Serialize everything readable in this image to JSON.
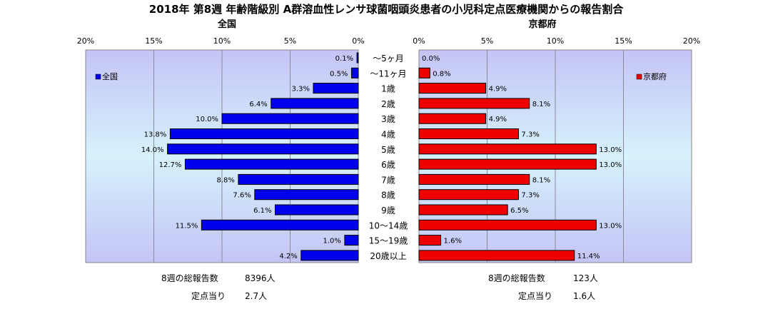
{
  "chart_data": {
    "type": "bar",
    "title": "2018年 第8週 年齢階級別 A群溶血性レンサ球菌咽頭炎患者の小児科定点医療機関からの報告割合",
    "categories": [
      "～5ヶ月",
      "～11ヶ月",
      "1歳",
      "2歳",
      "3歳",
      "4歳",
      "5歳",
      "6歳",
      "7歳",
      "8歳",
      "9歳",
      "10～14歳",
      "15～19歳",
      "20歳以上"
    ],
    "panels": [
      {
        "title": "全国",
        "legend": "全国",
        "color": "#0000ee",
        "xlim": [
          0,
          20
        ],
        "ticks": [
          "20%",
          "15%",
          "10%",
          "5%",
          "0%"
        ],
        "values": [
          0.1,
          0.5,
          3.3,
          6.4,
          10.0,
          13.8,
          14.0,
          12.7,
          8.8,
          7.6,
          6.1,
          11.5,
          1.0,
          4.2
        ],
        "value_labels": [
          "0.1%",
          "0.5%",
          "3.3%",
          "6.4%",
          "10.0%",
          "13.8%",
          "14.0%",
          "12.7%",
          "8.8%",
          "7.6%",
          "6.1%",
          "11.5%",
          "1.0%",
          "4.2%"
        ],
        "summary": [
          {
            "label": "8週の総報告数",
            "value": "8396人"
          },
          {
            "label": "定点当り",
            "value": "2.7人"
          }
        ]
      },
      {
        "title": "京都府",
        "legend": "京都府",
        "color": "#ee0000",
        "xlim": [
          0,
          20
        ],
        "ticks": [
          "0%",
          "5%",
          "10%",
          "15%",
          "20%"
        ],
        "values": [
          0.0,
          0.8,
          4.9,
          8.1,
          4.9,
          7.3,
          13.0,
          13.0,
          8.1,
          7.3,
          6.5,
          13.0,
          1.6,
          11.4
        ],
        "value_labels": [
          "0.0%",
          "0.8%",
          "4.9%",
          "8.1%",
          "4.9%",
          "7.3%",
          "13.0%",
          "13.0%",
          "8.1%",
          "7.3%",
          "6.5%",
          "13.0%",
          "1.6%",
          "11.4%"
        ],
        "summary": [
          {
            "label": "8週の総報告数",
            "value": "123人"
          },
          {
            "label": "定点当り",
            "value": "1.6人"
          }
        ]
      }
    ],
    "grid": true,
    "legend_position": "top-left / top-right"
  }
}
